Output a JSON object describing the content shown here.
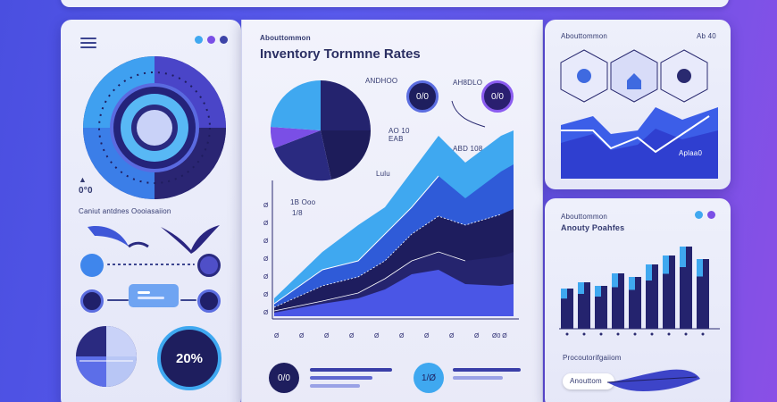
{
  "header": {
    "title": "Inventory Tornmne Rates",
    "kicker": "Abouttommon"
  },
  "left_panel": {
    "donut_value_label": "0°0",
    "section_label": "Caniut antdnes Oooiasaiion",
    "gauge_value": "20%"
  },
  "center_panel": {
    "pie_note": "ANDHOO",
    "badge_left": "0/0",
    "badge_right": "0/0",
    "badge_right_label": "AH8DLO",
    "callout_top": "AO 10\nEAB",
    "callout_mid": "ABD 108",
    "callout_small": "Lulu",
    "y_ticks": [
      "Ø",
      "Ø",
      "Ø",
      "Ø",
      "Ø",
      "Ø",
      "Ø"
    ],
    "series_labels": [
      "1B Ooo",
      "1/8"
    ],
    "x_ticks": [
      "Ø",
      "Ø",
      "Ø",
      "Ø",
      "Ø",
      "Ø",
      "Ø",
      "Ø",
      "Ø"
    ],
    "x_tick_last": "Ø0 Ø",
    "footer_badge_left": "0/0",
    "footer_badge_right": "1/Ø"
  },
  "right_top": {
    "top_label": "Abouttommon",
    "corner_label": "Ab 40",
    "chart_tag": "Aplaa0"
  },
  "right_bottom": {
    "kicker": "Abouttommon",
    "title": "Anouty Poahfes",
    "footer_label": "Procoutorifgaiiom",
    "footer_pill": "Anouttom"
  },
  "colors": {
    "primary": "#5b5cf0",
    "deep": "#25236a",
    "cyan": "#3fa8f0",
    "violet": "#7a4fe6"
  },
  "icons": [
    "hamburger-icon",
    "hexagon-gear-icon",
    "shield-icon",
    "feather-icon",
    "bird-icon"
  ]
}
